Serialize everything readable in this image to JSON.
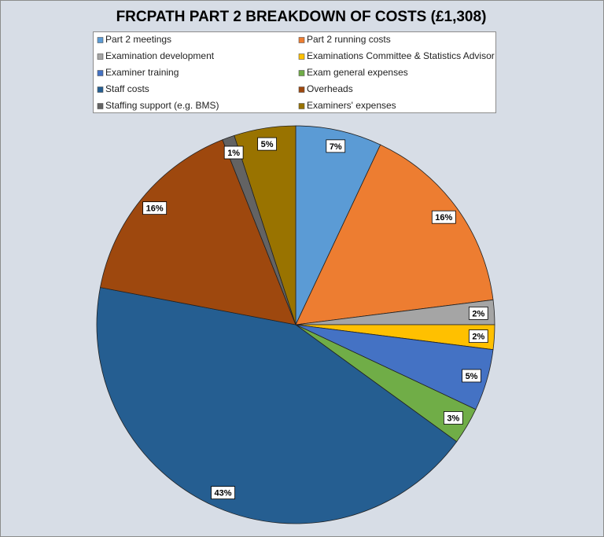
{
  "chart_data": {
    "type": "pie",
    "title": "FRCPATH PART 2 BREAKDOWN OF COSTS (£1,308)",
    "categories": [
      "Part 2 meetings",
      "Part 2 running costs",
      "Examination development",
      "Examinations Committee & Statistics Advisor",
      "Examiner training",
      "Exam general expenses",
      "Staff costs",
      "Overheads",
      "Staffing support (e.g. BMS)",
      "Examiners' expenses"
    ],
    "values": [
      7,
      16,
      2,
      2,
      5,
      3,
      43,
      16,
      1,
      5
    ],
    "value_labels": [
      "7%",
      "16%",
      "2%",
      "2%",
      "5%",
      "3%",
      "43%",
      "16%",
      "1%",
      "5%"
    ],
    "colors": [
      "#5b9bd5",
      "#ed7d31",
      "#a5a5a5",
      "#ffc000",
      "#4472c4",
      "#70ad47",
      "#255e91",
      "#9e480e",
      "#636363",
      "#997300"
    ],
    "legend": "top"
  }
}
